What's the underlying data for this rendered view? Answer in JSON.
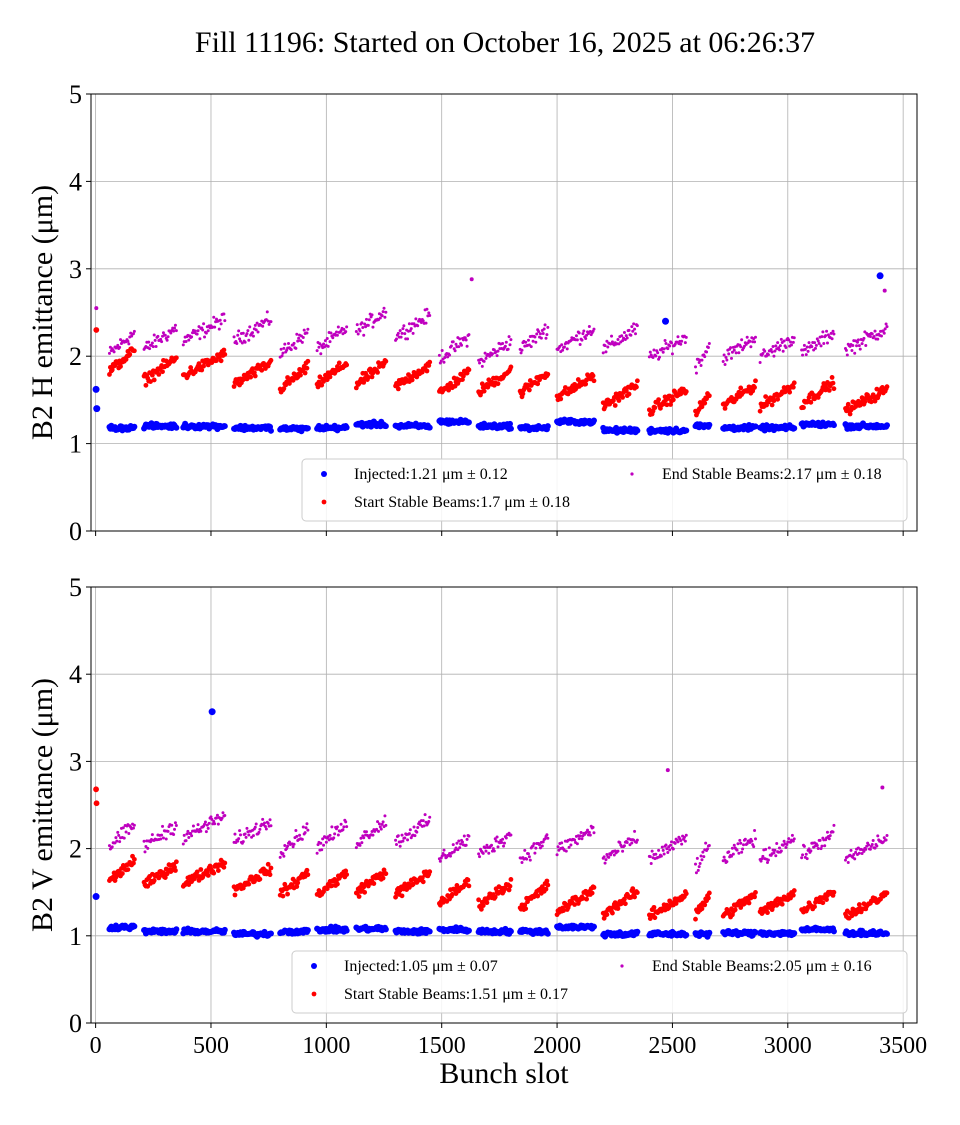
{
  "title": "Fill 11196: Started on October 16, 2025 at 06:26:37",
  "chart_data": [
    {
      "type": "scatter",
      "ylabel": "B2 H emittance (μm)",
      "xlabel": "",
      "xlim": [
        -20,
        3560
      ],
      "ylim": [
        0,
        5
      ],
      "xticks": [
        "0",
        "500",
        "1000",
        "1500",
        "2000",
        "2500",
        "3000",
        "3500"
      ],
      "yticks": [
        "0",
        "1",
        "2",
        "3",
        "4",
        "5"
      ],
      "grid": true,
      "legend_placement": "lower-right",
      "legend": [
        {
          "label": "Injected:1.21 μm ± 0.12",
          "color": "#0000ff"
        },
        {
          "label": "Start Stable Beams:1.7 μm ± 0.18",
          "color": "#ff0000"
        },
        {
          "label": "End Stable Beams:2.17 μm ± 0.18",
          "color": "#bf00bf"
        }
      ],
      "trains_columns": [
        "start_slot",
        "end_slot",
        "injected",
        "start_stable_beams",
        "end_stable_beams"
      ],
      "trains": [
        [
          60,
          170,
          1.18,
          1.95,
          2.15
        ],
        [
          210,
          350,
          1.2,
          1.85,
          2.2
        ],
        [
          380,
          560,
          1.2,
          1.9,
          2.3
        ],
        [
          600,
          760,
          1.18,
          1.8,
          2.3
        ],
        [
          800,
          920,
          1.17,
          1.75,
          2.15
        ],
        [
          960,
          1090,
          1.18,
          1.8,
          2.2
        ],
        [
          1130,
          1260,
          1.22,
          1.8,
          2.4
        ],
        [
          1300,
          1450,
          1.2,
          1.78,
          2.35
        ],
        [
          1490,
          1620,
          1.25,
          1.7,
          2.1
        ],
        [
          1660,
          1800,
          1.2,
          1.72,
          2.05
        ],
        [
          1840,
          1960,
          1.18,
          1.7,
          2.2
        ],
        [
          2000,
          2160,
          1.25,
          1.65,
          2.2
        ],
        [
          2200,
          2350,
          1.15,
          1.55,
          2.2
        ],
        [
          2400,
          2560,
          1.15,
          1.5,
          2.1
        ],
        [
          2600,
          2660,
          1.2,
          1.45,
          2.0
        ],
        [
          2720,
          2860,
          1.18,
          1.55,
          2.1
        ],
        [
          2880,
          3030,
          1.18,
          1.55,
          2.1
        ],
        [
          3060,
          3200,
          1.22,
          1.58,
          2.15
        ],
        [
          3250,
          3430,
          1.2,
          1.5,
          2.2
        ]
      ],
      "outliers": [
        {
          "series": "injected",
          "x": 3400,
          "y": 2.92
        },
        {
          "series": "injected",
          "x": 2470,
          "y": 2.4
        },
        {
          "series": "injected",
          "x": 2,
          "y": 1.62
        },
        {
          "series": "injected",
          "x": 5,
          "y": 1.4
        },
        {
          "series": "start_stable_beams",
          "x": 3,
          "y": 2.3
        },
        {
          "series": "end_stable_beams",
          "x": 3,
          "y": 2.55
        },
        {
          "series": "end_stable_beams",
          "x": 1630,
          "y": 2.88
        },
        {
          "series": "end_stable_beams",
          "x": 3420,
          "y": 2.75
        }
      ]
    },
    {
      "type": "scatter",
      "ylabel": "B2 V emittance (μm)",
      "xlabel": "Bunch slot",
      "xlim": [
        -20,
        3560
      ],
      "ylim": [
        0,
        5
      ],
      "xticks": [
        "0",
        "500",
        "1000",
        "1500",
        "2000",
        "2500",
        "3000",
        "3500"
      ],
      "yticks": [
        "0",
        "1",
        "2",
        "3",
        "4",
        "5"
      ],
      "grid": true,
      "legend_placement": "lower-right",
      "legend": [
        {
          "label": "Injected:1.05 μm ± 0.07",
          "color": "#0000ff"
        },
        {
          "label": "Start Stable Beams:1.51 μm ± 0.17",
          "color": "#ff0000"
        },
        {
          "label": "End Stable Beams:2.05 μm ± 0.16",
          "color": "#bf00bf"
        }
      ],
      "trains_columns": [
        "start_slot",
        "end_slot",
        "injected",
        "start_stable_beams",
        "end_stable_beams"
      ],
      "trains": [
        [
          60,
          170,
          1.1,
          1.75,
          2.15
        ],
        [
          210,
          350,
          1.05,
          1.7,
          2.15
        ],
        [
          380,
          560,
          1.05,
          1.72,
          2.25
        ],
        [
          600,
          760,
          1.02,
          1.65,
          2.2
        ],
        [
          800,
          920,
          1.05,
          1.6,
          2.1
        ],
        [
          960,
          1090,
          1.07,
          1.6,
          2.15
        ],
        [
          1130,
          1260,
          1.08,
          1.62,
          2.2
        ],
        [
          1300,
          1450,
          1.05,
          1.6,
          2.2
        ],
        [
          1490,
          1620,
          1.07,
          1.5,
          2.0
        ],
        [
          1660,
          1800,
          1.05,
          1.48,
          2.05
        ],
        [
          1840,
          1960,
          1.05,
          1.45,
          2.0
        ],
        [
          2000,
          2160,
          1.1,
          1.4,
          2.1
        ],
        [
          2200,
          2350,
          1.02,
          1.38,
          2.0
        ],
        [
          2400,
          2560,
          1.02,
          1.35,
          2.0
        ],
        [
          2600,
          2660,
          1.02,
          1.35,
          1.9
        ],
        [
          2720,
          2860,
          1.03,
          1.35,
          2.0
        ],
        [
          2880,
          3030,
          1.03,
          1.38,
          2.0
        ],
        [
          3060,
          3200,
          1.07,
          1.4,
          2.05
        ],
        [
          3250,
          3430,
          1.03,
          1.35,
          2.0
        ]
      ],
      "outliers": [
        {
          "series": "injected",
          "x": 505,
          "y": 3.57
        },
        {
          "series": "injected",
          "x": 2,
          "y": 1.45
        },
        {
          "series": "start_stable_beams",
          "x": 2,
          "y": 2.68
        },
        {
          "series": "start_stable_beams",
          "x": 4,
          "y": 2.52
        },
        {
          "series": "end_stable_beams",
          "x": 2480,
          "y": 2.9
        },
        {
          "series": "end_stable_beams",
          "x": 3410,
          "y": 2.7
        }
      ]
    }
  ]
}
